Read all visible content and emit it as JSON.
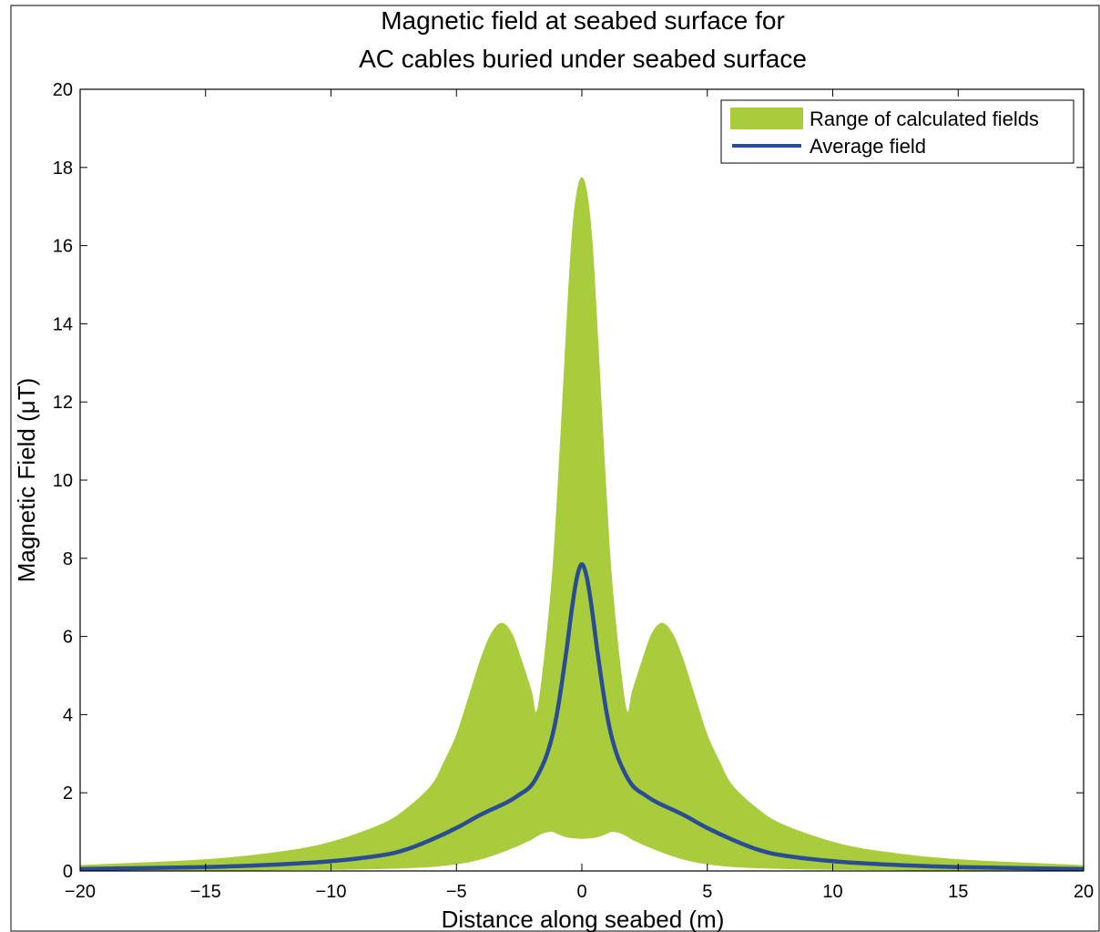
{
  "chart_data": {
    "type": "area",
    "title_lines": [
      "Magnetic field at seabed surface for",
      "AC cables buried under seabed surface"
    ],
    "xlabel": "Distance along seabed (m)",
    "ylabel": "Magnetic Field (μT)",
    "xlim": [
      -20,
      20
    ],
    "ylim": [
      0,
      20
    ],
    "xticks": [
      -20,
      -15,
      -10,
      -5,
      0,
      5,
      10,
      15,
      20
    ],
    "xtick_labels": [
      "−20",
      "−15",
      "−10",
      "−5",
      "0",
      "5",
      "10",
      "15",
      "20"
    ],
    "yticks": [
      0,
      2,
      4,
      6,
      8,
      10,
      12,
      14,
      16,
      18,
      20
    ],
    "ytick_labels": [
      "0",
      "2",
      "4",
      "6",
      "8",
      "10",
      "12",
      "14",
      "16",
      "18",
      "20"
    ],
    "grid": false,
    "legend_position": "top-right",
    "series": [
      {
        "name": "Range of calculated fields",
        "kind": "band",
        "color": "#a8cc3c",
        "x": [
          -20,
          -15,
          -12,
          -10,
          -8,
          -7,
          -6,
          -5.5,
          -5,
          -4.5,
          -4,
          -3.6,
          -3.2,
          -2.8,
          -2.4,
          -2,
          -1.8,
          -1.5,
          -1.2,
          -1,
          -0.8,
          -0.6,
          -0.4,
          -0.2,
          0,
          0.2,
          0.4,
          0.6,
          0.8,
          1,
          1.2,
          1.5,
          1.8,
          2,
          2.4,
          2.8,
          3.2,
          3.6,
          4,
          4.5,
          5,
          5.5,
          6,
          7,
          8,
          10,
          12,
          15,
          20
        ],
        "upper": [
          0.15,
          0.3,
          0.5,
          0.75,
          1.2,
          1.6,
          2.2,
          2.8,
          3.5,
          4.5,
          5.5,
          6.1,
          6.35,
          6.1,
          5.4,
          4.6,
          4.1,
          5.5,
          7.5,
          9.5,
          11.8,
          14.2,
          16.3,
          17.4,
          17.75,
          17.4,
          16.3,
          14.2,
          11.8,
          9.5,
          7.5,
          5.5,
          4.1,
          4.6,
          5.4,
          6.1,
          6.35,
          6.1,
          5.5,
          4.5,
          3.5,
          2.8,
          2.2,
          1.6,
          1.2,
          0.75,
          0.5,
          0.3,
          0.15
        ],
        "lower": [
          0.0,
          0.0,
          0.02,
          0.03,
          0.05,
          0.07,
          0.1,
          0.13,
          0.17,
          0.22,
          0.3,
          0.38,
          0.47,
          0.57,
          0.68,
          0.8,
          0.88,
          0.97,
          1.0,
          0.95,
          0.9,
          0.86,
          0.84,
          0.83,
          0.82,
          0.83,
          0.84,
          0.86,
          0.9,
          0.95,
          1.0,
          0.97,
          0.88,
          0.8,
          0.68,
          0.57,
          0.47,
          0.38,
          0.3,
          0.22,
          0.17,
          0.13,
          0.1,
          0.07,
          0.05,
          0.03,
          0.02,
          0.0,
          0.0
        ]
      },
      {
        "name": "Average field",
        "kind": "line",
        "color": "#2a4c94",
        "x": [
          -20,
          -15,
          -12,
          -10,
          -8,
          -7,
          -6,
          -5,
          -4,
          -3,
          -2.5,
          -2,
          -1.5,
          -1.2,
          -1,
          -0.8,
          -0.6,
          -0.4,
          -0.2,
          0,
          0.2,
          0.4,
          0.6,
          0.8,
          1,
          1.2,
          1.5,
          2,
          2.5,
          3,
          4,
          5,
          6,
          7,
          8,
          10,
          12,
          15,
          20
        ],
        "y": [
          0.05,
          0.1,
          0.17,
          0.25,
          0.4,
          0.55,
          0.8,
          1.1,
          1.45,
          1.75,
          1.95,
          2.2,
          2.8,
          3.4,
          4.0,
          4.8,
          5.7,
          6.7,
          7.5,
          7.85,
          7.5,
          6.7,
          5.7,
          4.8,
          4.0,
          3.4,
          2.8,
          2.2,
          1.95,
          1.75,
          1.45,
          1.1,
          0.8,
          0.55,
          0.4,
          0.25,
          0.17,
          0.1,
          0.05
        ]
      }
    ]
  }
}
